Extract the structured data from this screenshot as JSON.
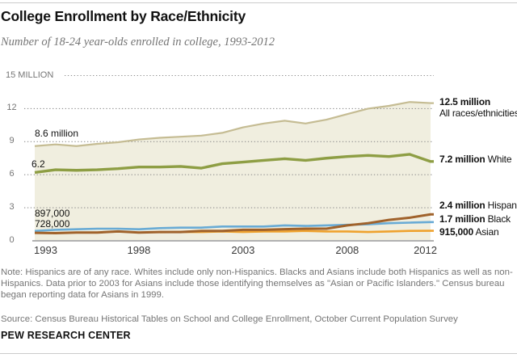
{
  "header": {
    "title": "College Enrollment by Race/Ethnicity",
    "subtitle": "Number of 18-24 year-olds enrolled in college, 1993-2012"
  },
  "chart_data": {
    "type": "line",
    "title": "College Enrollment by Race/Ethnicity",
    "subtitle": "Number of 18-24 year-olds enrolled in college, 1993-2012",
    "unit": "millions of 18-24 year-olds",
    "x": [
      1993,
      1994,
      1995,
      1996,
      1997,
      1998,
      1999,
      2000,
      2001,
      2002,
      2003,
      2004,
      2005,
      2006,
      2007,
      2008,
      2009,
      2010,
      2011,
      2012
    ],
    "x_tick_labels": [
      "1993",
      "1998",
      "2003",
      "2008",
      "2012"
    ],
    "x_tick_years": [
      1993,
      1998,
      2003,
      2008,
      2012
    ],
    "y_ticks": [
      {
        "value": 15,
        "label": "15 MILLION"
      },
      {
        "value": 12,
        "label": "12"
      },
      {
        "value": 9,
        "label": "9"
      },
      {
        "value": 6,
        "label": "6"
      },
      {
        "value": 3,
        "label": "3"
      },
      {
        "value": 0,
        "label": "0"
      }
    ],
    "ylim": [
      0,
      15
    ],
    "grid": "dotted-horizontal",
    "series": [
      {
        "id": "all",
        "name": "All races/ethnicities",
        "color": "#c5bc93",
        "area_fill": "#f0eedf",
        "start_label": "8.6 million",
        "end_label": "12.5 million",
        "values": [
          8.6,
          8.75,
          8.6,
          8.8,
          8.95,
          9.2,
          9.35,
          9.45,
          9.55,
          9.8,
          10.3,
          10.65,
          10.9,
          10.65,
          11.0,
          11.5,
          12.0,
          12.25,
          12.6,
          12.5
        ]
      },
      {
        "id": "white",
        "name": "White",
        "color": "#8e9e44",
        "start_label": "6.2",
        "end_label": "7.2 million",
        "values": [
          6.2,
          6.45,
          6.4,
          6.45,
          6.55,
          6.7,
          6.7,
          6.75,
          6.6,
          7.0,
          7.15,
          7.3,
          7.45,
          7.3,
          7.5,
          7.65,
          7.75,
          7.65,
          7.85,
          7.2
        ]
      },
      {
        "id": "black",
        "name": "Black",
        "color": "#69abd5",
        "start_label": "897,000",
        "end_label": "1.7 million",
        "values": [
          0.897,
          1.0,
          1.05,
          1.1,
          1.1,
          1.05,
          1.15,
          1.2,
          1.2,
          1.3,
          1.3,
          1.3,
          1.4,
          1.35,
          1.4,
          1.45,
          1.5,
          1.6,
          1.65,
          1.7
        ]
      },
      {
        "id": "asian",
        "name": "Asian",
        "color": "#efa22e",
        "start_label": null,
        "end_label": "915,000",
        "values": [
          null,
          null,
          null,
          null,
          null,
          null,
          0.78,
          0.8,
          0.8,
          0.85,
          0.8,
          0.85,
          0.85,
          0.9,
          0.85,
          0.85,
          0.8,
          0.85,
          0.9,
          0.915
        ]
      },
      {
        "id": "hispanic",
        "name": "Hispanic",
        "color": "#a0622b",
        "start_label": "728,000",
        "end_label": "2.4 million",
        "values": [
          0.728,
          0.7,
          0.75,
          0.75,
          0.85,
          0.75,
          0.8,
          0.8,
          0.9,
          0.9,
          1.0,
          1.0,
          1.05,
          1.1,
          1.1,
          1.4,
          1.6,
          1.9,
          2.1,
          2.4
        ]
      }
    ]
  },
  "footer": {
    "note": "Note: Hispanics are of any race. Whites include only non-Hispanics. Blacks and Asians include both Hispanics as well as non-Hispanics. Data prior to 2003 for Asians include those identifying themselves as \"Asian or Pacific Islanders.\" Census bureau began reporting data for Asians in 1999.",
    "source": "Source: Census Bureau Historical Tables on School and College Enrollment, October Current Population Survey",
    "brand": "PEW RESEARCH CENTER"
  }
}
